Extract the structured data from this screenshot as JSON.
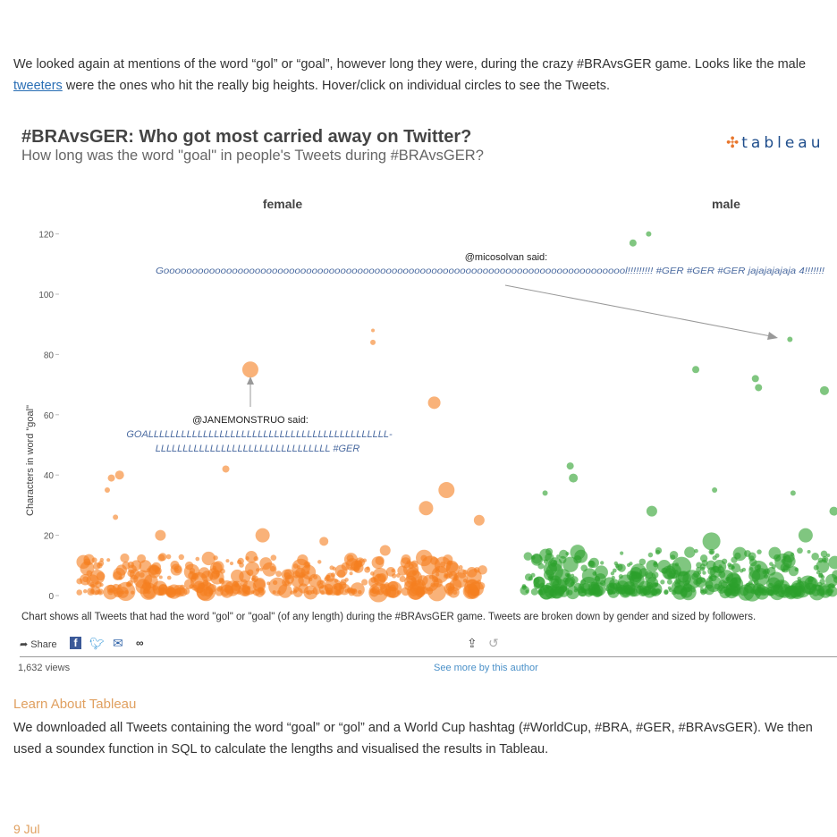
{
  "intro": {
    "before": "We looked again at mentions of the word “gol” or “goal”, however long they were, during the crazy #BRAvsGER game. Looks like the male ",
    "link": "tweeters",
    "after": " were the ones who hit the really big heights. Hover/click on individual circles to see the Tweets."
  },
  "viz": {
    "title": "#BRAvsGER: Who got most carried away on Twitter?",
    "subtitle": "How long was the word \"goal\" in people's Tweets during #BRAvsGER?",
    "logo": "tableau",
    "caption": "Chart shows all Tweets that had the word \"gol\" or \"goal\" (of any length) during the #BRAvsGER game. Tweets are broken down by gender and sized by followers.",
    "share_label": "Share",
    "views": "1,632 views",
    "see_more": "See more by this author"
  },
  "learn_link": "Learn About Tableau",
  "body2": "We downloaded all Tweets containing the word “goal” or “gol” and a World Cup hashtag (#WorldCup, #BRA, #GER, #BRAvsGER). We then used a soundex function in SQL to calculate the lengths and visualised the results in Tableau.",
  "date": "9 Jul",
  "chart_data": {
    "type": "scatter",
    "title": "#BRAvsGER: Who got most carried away on Twitter?",
    "ylabel": "Characters in word \"goal\"",
    "ylim": [
      0,
      125
    ],
    "yticks": [
      0,
      20,
      40,
      60,
      80,
      100,
      120
    ],
    "panels": [
      {
        "name": "female",
        "color": "#f57f20",
        "points": [
          [
            42,
            75,
            9
          ],
          [
            72,
            88,
            2
          ],
          [
            72,
            84,
            3
          ],
          [
            87,
            64,
            7
          ],
          [
            36,
            42,
            4
          ],
          [
            10,
            40,
            5
          ],
          [
            8,
            39,
            4
          ],
          [
            7,
            35,
            3
          ],
          [
            90,
            35,
            9
          ],
          [
            85,
            29,
            8
          ],
          [
            9,
            26,
            3
          ],
          [
            98,
            25,
            6
          ],
          [
            20,
            20,
            6
          ],
          [
            45,
            20,
            8
          ],
          [
            60,
            18,
            5
          ],
          [
            75,
            15,
            6
          ]
        ],
        "cluster": {
          "count": 420,
          "ymax": 12,
          "seed": 7
        }
      },
      {
        "name": "male",
        "color": "#2ca02c",
        "points": [
          [
            35,
            117,
            4
          ],
          [
            40,
            120,
            3
          ],
          [
            85,
            85,
            3
          ],
          [
            55,
            75,
            4
          ],
          [
            74,
            72,
            4
          ],
          [
            75,
            69,
            4
          ],
          [
            96,
            68,
            5
          ],
          [
            15,
            43,
            4
          ],
          [
            16,
            39,
            5
          ],
          [
            7,
            34,
            3
          ],
          [
            86,
            34,
            3
          ],
          [
            61,
            35,
            3
          ],
          [
            41,
            28,
            6
          ],
          [
            99,
            28,
            5
          ],
          [
            60,
            18,
            10
          ],
          [
            90,
            20,
            8
          ]
        ],
        "cluster": {
          "count": 420,
          "ymax": 14,
          "seed": 13
        }
      }
    ],
    "annotations": [
      {
        "panel": "female",
        "user": "@JANEMONSTRUO said:",
        "text_line1": "GOALLLLLLLLLLLLLLLLLLLLLLLLLLLLLLLLLLLLLLLLLLLL-",
        "text_line2": "LLLLLLLLLLLLLLLLLLLLLLLLLLLLLLLL #GER"
      },
      {
        "panel": "male",
        "user": "@micosolvan said:",
        "text": "Goooooooooooooooooooooooooooooooooooooooooooooooooooooooooooooooooooooooooooooooool!!!!!!!!! #GER #GER #GER  jajajajajaja 4!!!!!!!"
      }
    ]
  }
}
